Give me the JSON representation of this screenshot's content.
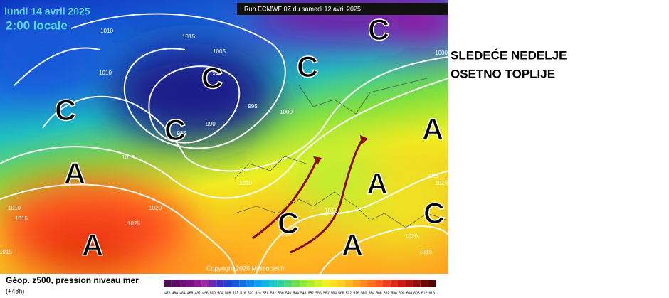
{
  "header": {
    "date": "lundi 14 avril 2025",
    "time": "2:00 locale",
    "run": "Run ECMWF 0Z du samedi 12 avril 2025"
  },
  "headline": [
    "SLEDEĆE NEDELJE",
    "OSETNO TOPLIJE"
  ],
  "footer": {
    "caption": "Géop. z500, pression niveau mer",
    "lead": "(+48h)",
    "copyright": "Copyright 2025 Meteociel.fr"
  },
  "scale": [
    476,
    480,
    484,
    488,
    492,
    496,
    500,
    504,
    508,
    512,
    516,
    520,
    524,
    528,
    532,
    536,
    540,
    544,
    548,
    552,
    556,
    560,
    564,
    568,
    572,
    576,
    580,
    584,
    588,
    592,
    596,
    600,
    604,
    608,
    612,
    616
  ],
  "isobars": [
    "1010",
    "1015",
    "1005",
    "1010",
    "995",
    "995",
    "990",
    "985",
    "1000",
    "1000",
    "1015",
    "1010",
    "1020",
    "1025",
    "1010",
    "1015",
    "1015",
    "1010",
    "1015",
    "1025",
    "1025",
    "1020",
    "1015"
  ],
  "centers": [
    "C",
    "C",
    "C",
    "C",
    "C",
    "A",
    "A",
    "A",
    "A",
    "A",
    "C",
    "C"
  ]
}
